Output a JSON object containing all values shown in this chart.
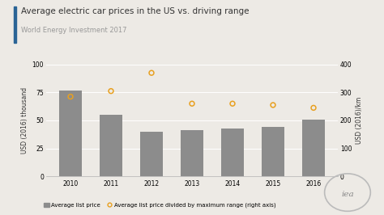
{
  "title": "Average electric car prices in the US vs. driving range",
  "subtitle": "World Energy Investment 2017",
  "years": [
    2010,
    2011,
    2012,
    2013,
    2014,
    2015,
    2016
  ],
  "bar_values": [
    77,
    55,
    40,
    41,
    43,
    44,
    51
  ],
  "line_values": [
    285,
    305,
    370,
    260,
    260,
    255,
    245
  ],
  "bar_color": "#8c8c8c",
  "line_color": "#e8a020",
  "background_color": "#edeae5",
  "title_color": "#333333",
  "subtitle_color": "#999999",
  "grid_color": "#ffffff",
  "ylabel_left": "USD (2016) thousand",
  "ylabel_right": "USD (2016)/km",
  "ylim_left": [
    0,
    100
  ],
  "ylim_right": [
    0,
    400
  ],
  "yticks_left": [
    0,
    25,
    50,
    75,
    100
  ],
  "yticks_right": [
    0,
    100,
    200,
    300,
    400
  ],
  "legend_bar": "Average list price",
  "legend_line": "Average list price divided by maximum range (right axis)",
  "accent_color": "#2a6496",
  "title_fontsize": 7.5,
  "subtitle_fontsize": 6.0,
  "tick_fontsize": 5.5,
  "label_fontsize": 5.5,
  "legend_fontsize": 5.0
}
